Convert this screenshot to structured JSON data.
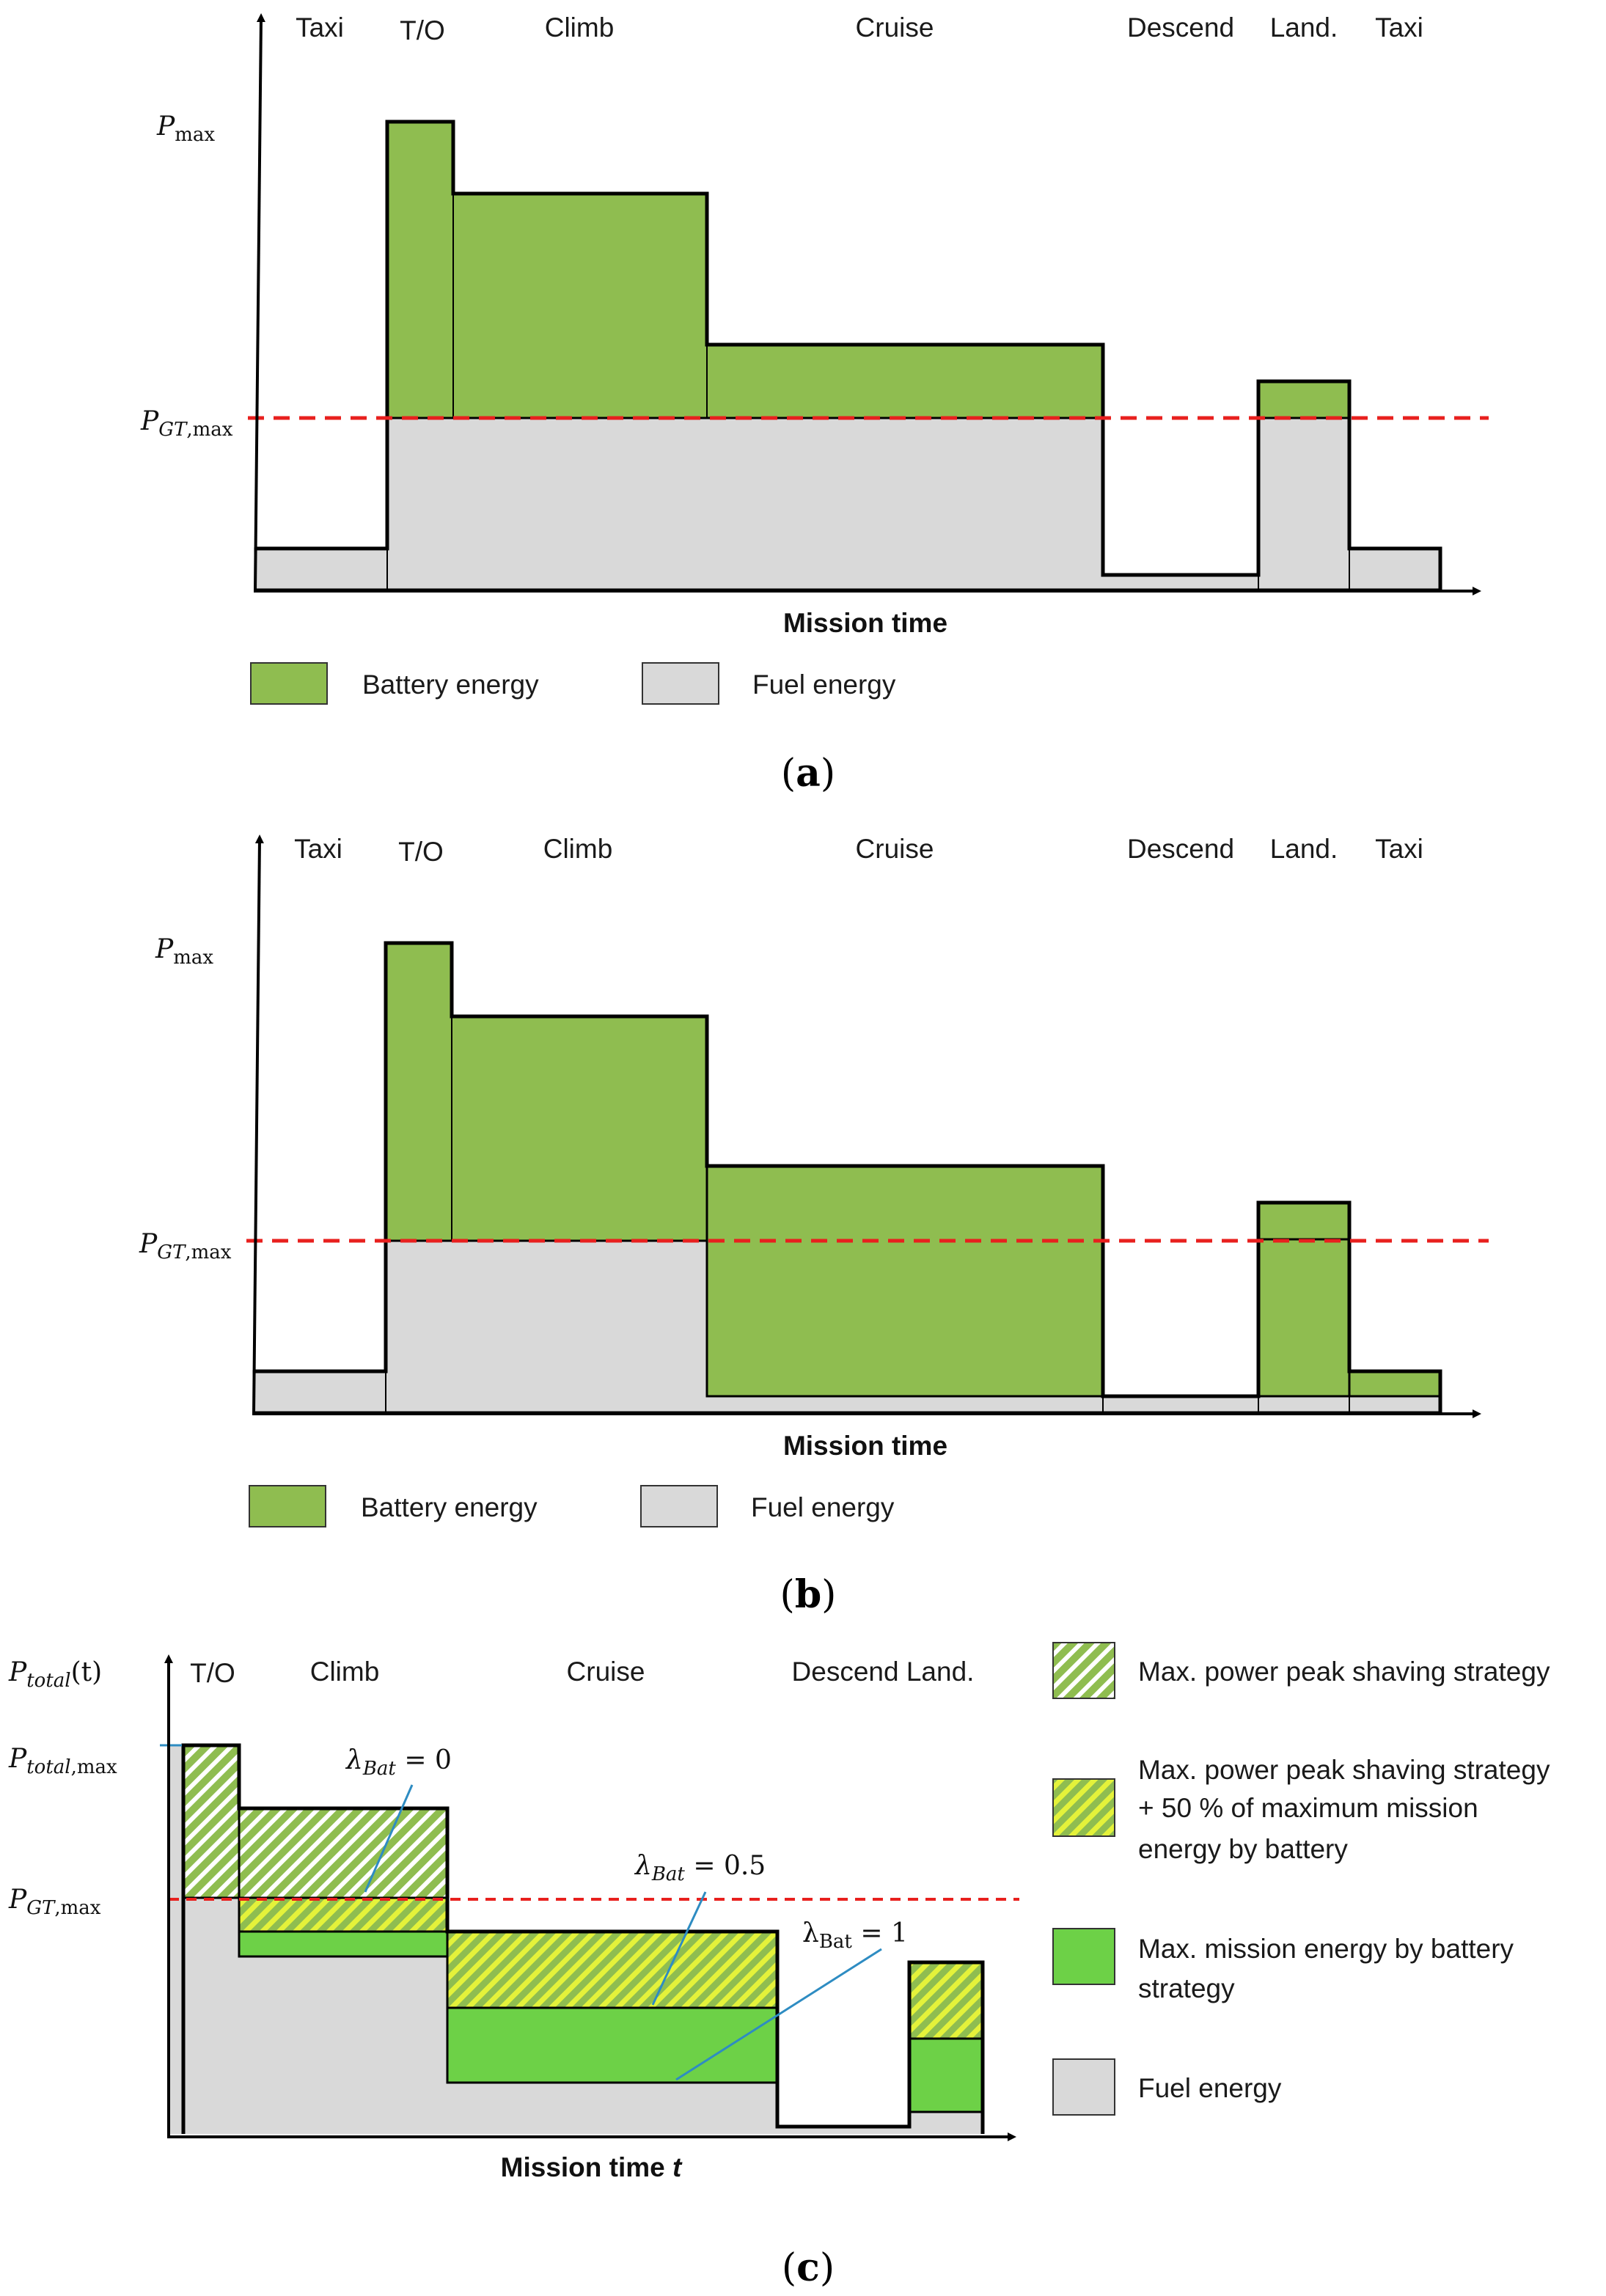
{
  "colors": {
    "battery": "#8fbd50",
    "battery_strong": "#6dd147",
    "hatch_yellow": "#e4f23a",
    "fuel": "#d9d9d9",
    "limit_line": "#e8201e",
    "annotation_line": "#2e8cc2",
    "outline": "#000000"
  },
  "panel_a": {
    "caption": {
      "open": "(",
      "letter": "a",
      "close": ")"
    },
    "phases": [
      "Taxi",
      "T/O",
      "Climb",
      "Cruise",
      "Descend",
      "Land.",
      "Taxi"
    ],
    "y_labels": {
      "pmax_main": "P",
      "pmax_sub": "max",
      "pgt_main": "P",
      "pgt_sub1": "GT",
      "pgt_sub2": ",max"
    },
    "x_label": "Mission time",
    "legend": [
      "Battery energy",
      "Fuel energy"
    ]
  },
  "panel_b": {
    "caption": {
      "open": "(",
      "letter": "b",
      "close": ")"
    },
    "phases": [
      "Taxi",
      "T/O",
      "Climb",
      "Cruise",
      "Descend",
      "Land.",
      "Taxi"
    ],
    "y_labels": {
      "pmax_main": "P",
      "pmax_sub": "max",
      "pgt_main": "P",
      "pgt_sub1": "GT",
      "pgt_sub2": ",max"
    },
    "x_label": "Mission time",
    "legend": [
      "Battery energy",
      "Fuel energy"
    ]
  },
  "panel_c": {
    "caption": {
      "open": "(",
      "letter": "c",
      "close": ")"
    },
    "phases": [
      "T/O",
      "Climb",
      "Cruise",
      "Descend Land."
    ],
    "y_labels": {
      "ptotal_main": "P",
      "ptotal_sub": "total",
      "ptotal_arg": "(t)",
      "ptotalmax_main": "P",
      "ptotalmax_sub1": "total",
      "ptotalmax_sub2": ",max",
      "pgt_main": "P",
      "pgt_sub1": "GT",
      "pgt_sub2": ",max"
    },
    "x_label": {
      "text": "Mission time ",
      "var": "t"
    },
    "lambda_labels": [
      {
        "sym": "λ",
        "sub": "Bat",
        "val": " = 0"
      },
      {
        "sym": "λ",
        "sub": "Bat",
        "val": " = 0.5"
      },
      {
        "sym": "λ",
        "sub": "Bat",
        "val": " = 1"
      }
    ],
    "legend": [
      {
        "lines": [
          "Max. power peak shaving strategy"
        ]
      },
      {
        "lines": [
          "Max. power peak shaving strategy",
          "+ 50 % of maximum mission",
          "energy by battery"
        ]
      },
      {
        "lines": [
          "Max. mission energy by battery",
          "strategy"
        ]
      },
      {
        "lines": [
          "Fuel energy"
        ]
      }
    ]
  }
}
